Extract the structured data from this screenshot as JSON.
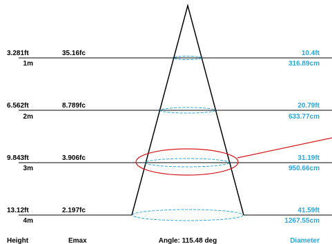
{
  "colors": {
    "line": "#000000",
    "diameter": "#29a8e0",
    "highlight": "#d9161c"
  },
  "rows": [
    {
      "height_ft": "3.281ft",
      "height_m": "1m",
      "emax": "35.16fc",
      "diameter_ft": "10.4ft",
      "diameter_cm": "316.89cm"
    },
    {
      "height_ft": "6.562ft",
      "height_m": "2m",
      "emax": "8.789fc",
      "diameter_ft": "20.79ft",
      "diameter_cm": "633.77cm"
    },
    {
      "height_ft": "9.843ft",
      "height_m": "3m",
      "emax": "3.906fc",
      "diameter_ft": "31.19ft",
      "diameter_cm": "950.66cm"
    },
    {
      "height_ft": "13.12ft",
      "height_m": "4m",
      "emax": "2.197fc",
      "diameter_ft": "41.59ft",
      "diameter_cm": "1267.55cm"
    }
  ],
  "footer": {
    "height": "Height",
    "emax": "Emax",
    "angle": "Angle: 115.48 deg",
    "diameter": "Diameter"
  },
  "highlighted_row": 2
}
